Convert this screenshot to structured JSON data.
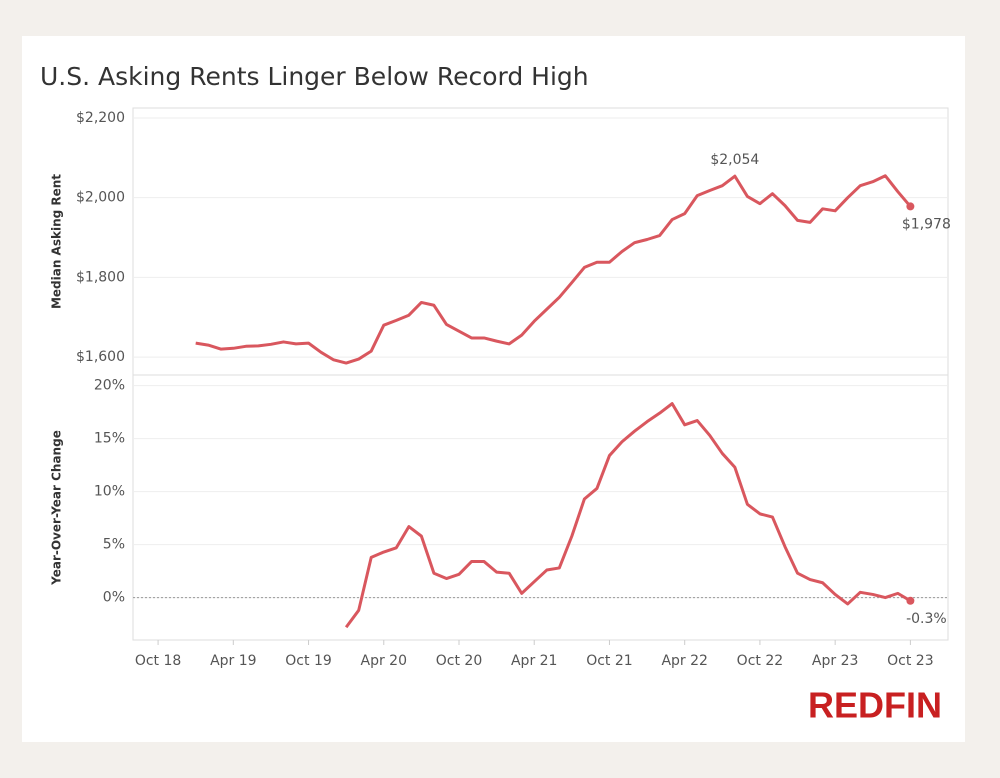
{
  "chart_data": [
    {
      "type": "line",
      "title": "U.S. Asking Rents Linger Below Record High",
      "ylabel": "Median Asking Rent",
      "x": [
        "2019-01",
        "2019-02",
        "2019-03",
        "2019-04",
        "2019-05",
        "2019-06",
        "2019-07",
        "2019-08",
        "2019-09",
        "2019-10",
        "2019-11",
        "2019-12",
        "2020-01",
        "2020-02",
        "2020-03",
        "2020-04",
        "2020-05",
        "2020-06",
        "2020-07",
        "2020-08",
        "2020-09",
        "2020-10",
        "2020-11",
        "2020-12",
        "2021-01",
        "2021-02",
        "2021-03",
        "2021-04",
        "2021-05",
        "2021-06",
        "2021-07",
        "2021-08",
        "2021-09",
        "2021-10",
        "2021-11",
        "2021-12",
        "2022-01",
        "2022-02",
        "2022-03",
        "2022-04",
        "2022-05",
        "2022-06",
        "2022-07",
        "2022-08",
        "2022-09",
        "2022-10",
        "2022-11",
        "2022-12",
        "2023-01",
        "2023-02",
        "2023-03",
        "2023-04",
        "2023-05",
        "2023-06",
        "2023-07",
        "2023-08",
        "2023-09",
        "2023-10"
      ],
      "series": [
        {
          "name": "Median Asking Rent",
          "color": "#d9575e",
          "values": [
            1635,
            1630,
            1620,
            1622,
            1627,
            1628,
            1632,
            1638,
            1633,
            1635,
            1612,
            1593,
            1585,
            1595,
            1615,
            1680,
            1692,
            1705,
            1737,
            1730,
            1682,
            1665,
            1648,
            1648,
            1640,
            1633,
            1655,
            1690,
            1720,
            1750,
            1787,
            1825,
            1838,
            1838,
            1865,
            1887,
            1895,
            1905,
            1945,
            1960,
            2005,
            2018,
            2030,
            2054,
            2003,
            1985,
            2010,
            1980,
            1943,
            1938,
            1972,
            1967,
            2000,
            2030,
            2040,
            2055,
            2015,
            1978
          ]
        }
      ],
      "annotations": [
        {
          "x": "2022-08",
          "label": "$2,054"
        },
        {
          "x": "2023-10",
          "label": "$1,978"
        }
      ],
      "xlim": [
        "2018-08",
        "2024-01"
      ],
      "ylim": [
        1555,
        2225
      ],
      "yticks": [
        {
          "value": 1600,
          "label": "$1,600"
        },
        {
          "value": 1800,
          "label": "$1,800"
        },
        {
          "value": 2000,
          "label": "$2,000"
        },
        {
          "value": 2200,
          "label": "$2,200"
        }
      ],
      "grid": true
    },
    {
      "type": "line",
      "ylabel": "Year-Over-Year Change",
      "x": [
        "2020-01",
        "2020-02",
        "2020-03",
        "2020-04",
        "2020-05",
        "2020-06",
        "2020-07",
        "2020-08",
        "2020-09",
        "2020-10",
        "2020-11",
        "2020-12",
        "2021-01",
        "2021-02",
        "2021-03",
        "2021-04",
        "2021-05",
        "2021-06",
        "2021-07",
        "2021-08",
        "2021-09",
        "2021-10",
        "2021-11",
        "2021-12",
        "2022-01",
        "2022-02",
        "2022-03",
        "2022-04",
        "2022-05",
        "2022-06",
        "2022-07",
        "2022-08",
        "2022-09",
        "2022-10",
        "2022-11",
        "2022-12",
        "2023-01",
        "2023-02",
        "2023-03",
        "2023-04",
        "2023-05",
        "2023-06",
        "2023-07",
        "2023-08",
        "2023-09",
        "2023-10"
      ],
      "series": [
        {
          "name": "Year-Over-Year Change",
          "color": "#d9575e",
          "values": [
            -2.8,
            -1.2,
            3.8,
            4.3,
            4.7,
            6.7,
            5.8,
            2.3,
            1.8,
            2.2,
            3.4,
            3.4,
            2.4,
            2.3,
            0.4,
            1.5,
            2.6,
            2.8,
            5.8,
            9.3,
            10.3,
            13.4,
            14.7,
            15.7,
            16.6,
            17.4,
            18.3,
            16.3,
            16.7,
            15.3,
            13.6,
            12.3,
            8.8,
            7.9,
            7.6,
            4.8,
            2.3,
            1.7,
            1.4,
            0.3,
            -0.6,
            0.5,
            0.3,
            0,
            0.4,
            -0.3
          ]
        }
      ],
      "annotations": [
        {
          "x": "2023-10",
          "label": "-0.3%"
        }
      ],
      "xlim": [
        "2018-08",
        "2024-01"
      ],
      "ylim": [
        -4,
        21
      ],
      "yticks": [
        {
          "value": 0,
          "label": "0%"
        },
        {
          "value": 5,
          "label": "5%"
        },
        {
          "value": 10,
          "label": "10%"
        },
        {
          "value": 15,
          "label": "15%"
        },
        {
          "value": 20,
          "label": "20%"
        }
      ],
      "xticks": [
        {
          "value": "2018-10",
          "label": "Oct 18"
        },
        {
          "value": "2019-04",
          "label": "Apr 19"
        },
        {
          "value": "2019-10",
          "label": "Oct 19"
        },
        {
          "value": "2020-04",
          "label": "Apr 20"
        },
        {
          "value": "2020-10",
          "label": "Oct 20"
        },
        {
          "value": "2021-04",
          "label": "Apr 21"
        },
        {
          "value": "2021-10",
          "label": "Oct 21"
        },
        {
          "value": "2022-04",
          "label": "Apr 22"
        },
        {
          "value": "2022-10",
          "label": "Oct 22"
        },
        {
          "value": "2023-04",
          "label": "Apr 23"
        },
        {
          "value": "2023-10",
          "label": "Oct 23"
        }
      ],
      "zero_line": true,
      "grid": true
    }
  ],
  "logo": "REDFIN"
}
